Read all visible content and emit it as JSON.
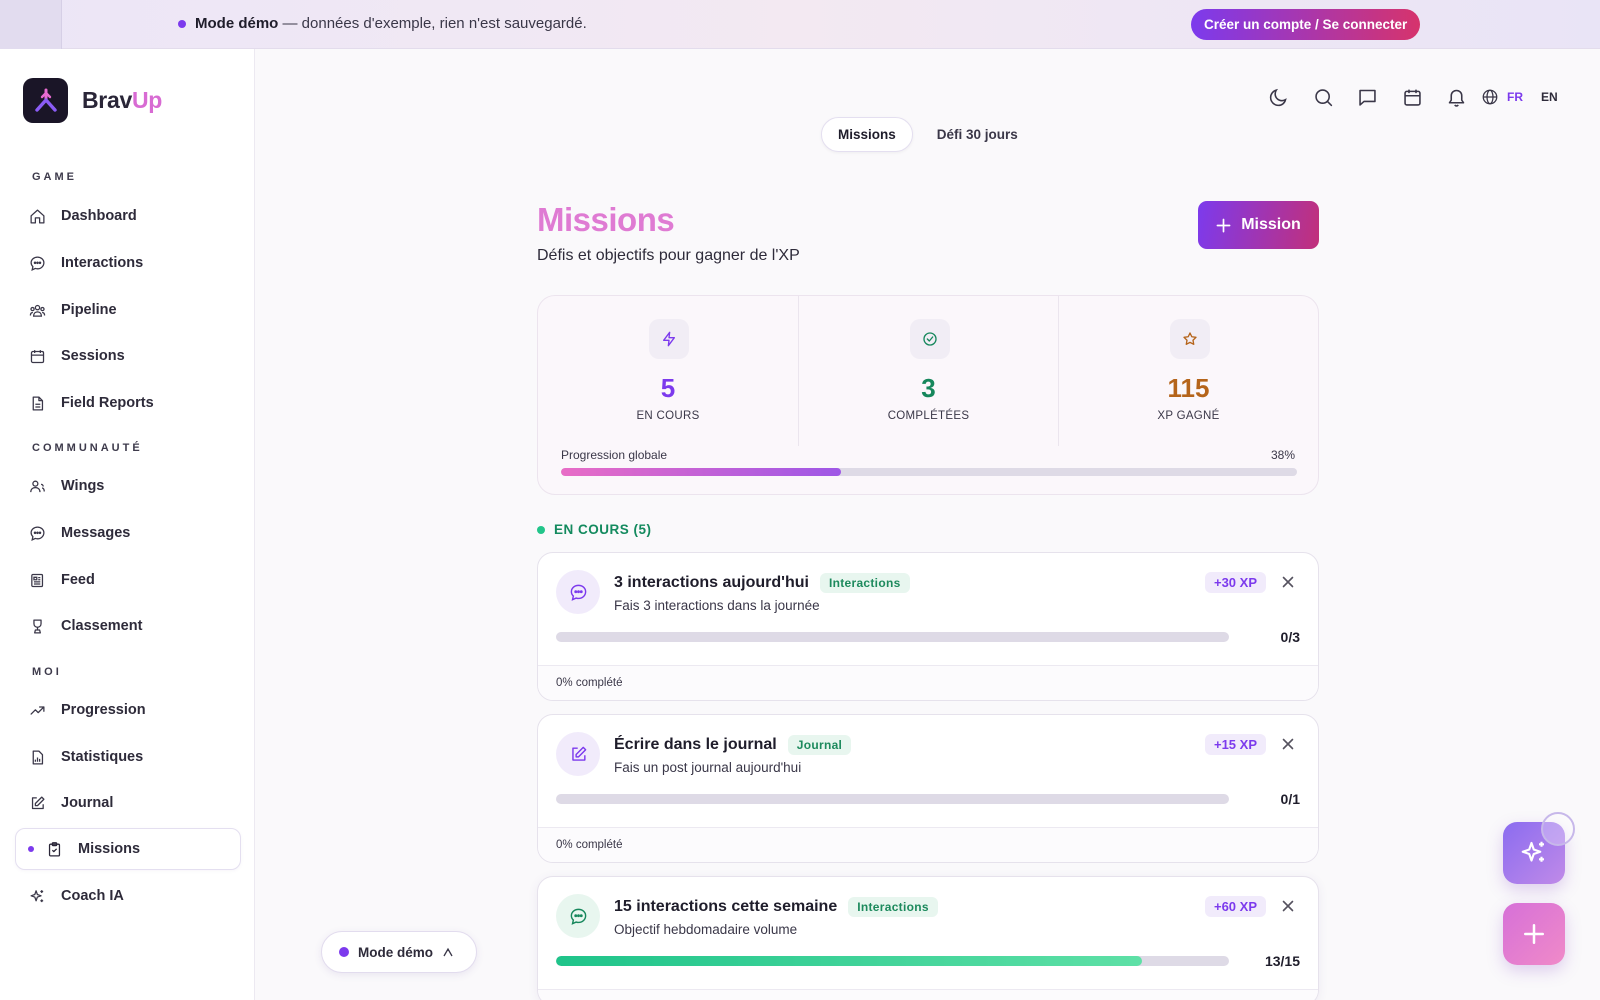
{
  "banner": {
    "mode_label": "Mode démo",
    "message": " — données d'exemple, rien n'est sauvegardé.",
    "cta_label": "Créer un compte / Se connecter"
  },
  "brand": {
    "name_main": "Brav",
    "name_accent": "Up"
  },
  "sidebar": {
    "sections": [
      {
        "label": "GAME",
        "items": [
          {
            "label": "Dashboard",
            "icon": "home-icon"
          },
          {
            "label": "Interactions",
            "icon": "chat-icon"
          },
          {
            "label": "Pipeline",
            "icon": "users-icon"
          },
          {
            "label": "Sessions",
            "icon": "calendar-icon"
          },
          {
            "label": "Field Reports",
            "icon": "document-icon"
          }
        ]
      },
      {
        "label": "COMMUNAUTÉ",
        "items": [
          {
            "label": "Wings",
            "icon": "user-plus-icon"
          },
          {
            "label": "Messages",
            "icon": "message-icon"
          },
          {
            "label": "Feed",
            "icon": "newspaper-icon"
          },
          {
            "label": "Classement",
            "icon": "trophy-icon"
          }
        ]
      },
      {
        "label": "MOI",
        "items": [
          {
            "label": "Progression",
            "icon": "trend-icon"
          },
          {
            "label": "Statistiques",
            "icon": "chart-file-icon"
          },
          {
            "label": "Journal",
            "icon": "edit-icon"
          },
          {
            "label": "Missions",
            "icon": "clipboard-icon",
            "active": true
          },
          {
            "label": "Coach IA",
            "icon": "sparkles-icon"
          }
        ]
      }
    ]
  },
  "demo_pill": {
    "label": "Mode démo"
  },
  "header": {
    "lang_fr": "FR",
    "lang_en": "EN"
  },
  "tabs": [
    {
      "label": "Missions",
      "active": true
    },
    {
      "label": "Défi 30 jours",
      "active": false
    }
  ],
  "page": {
    "title": "Missions",
    "subtitle": "Défis et objectifs pour gagner de l'XP",
    "add_button": "Mission"
  },
  "stats": {
    "in_progress": {
      "value": "5",
      "label": "EN COURS",
      "color": "#7c3aed"
    },
    "completed": {
      "value": "3",
      "label": "COMPLÉTÉES",
      "color": "#16875c"
    },
    "xp": {
      "value": "115",
      "label": "XP GAGNÉ",
      "color": "#b5641a"
    },
    "progress_label": "Progression globale",
    "progress_pct_label": "38%",
    "progress_pct": 38
  },
  "section": {
    "heading": "EN COURS (5)"
  },
  "missions": [
    {
      "title": "3 interactions aujourd'hui",
      "tag": "Interactions",
      "desc": "Fais 3 interactions dans la journée",
      "xp": "+30 XP",
      "count": "0/3",
      "progress": 0,
      "footer": "0% complété",
      "icon": "chat-icon"
    },
    {
      "title": "Écrire dans le journal",
      "tag": "Journal",
      "desc": "Fais un post journal aujourd'hui",
      "xp": "+15 XP",
      "count": "0/1",
      "progress": 0,
      "footer": "0% complété",
      "icon": "edit-icon"
    },
    {
      "title": "15 interactions cette semaine",
      "tag": "Interactions",
      "desc": "Objectif hebdomadaire volume",
      "xp": "+60 XP",
      "count": "13/15",
      "progress": 87,
      "footer": "",
      "icon": "chat-icon"
    }
  ]
}
